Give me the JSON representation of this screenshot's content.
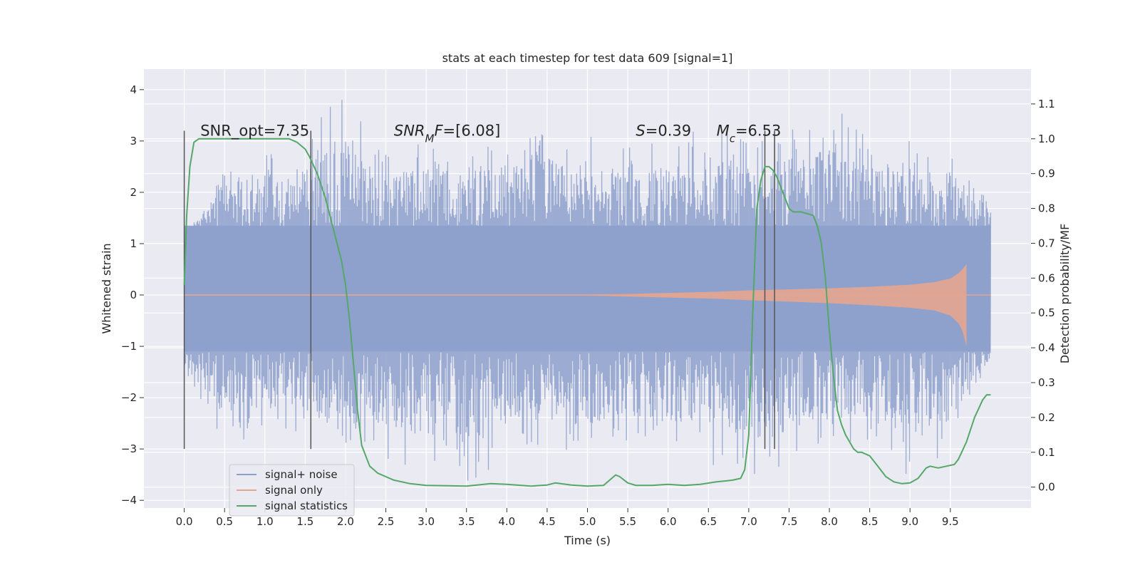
{
  "chart_data": {
    "type": "line",
    "title": "stats at each timestep for test data 609 [signal=1]",
    "xlabel": "Time (s)",
    "ylabel": "Whitened strain",
    "y2label": "Detection probability/MF",
    "xlim": [
      -0.5,
      10.5
    ],
    "ylim": [
      -4.15,
      4.4
    ],
    "y2lim": [
      -0.06,
      1.2
    ],
    "xticks": [
      0.0,
      0.5,
      1.0,
      1.5,
      2.0,
      2.5,
      3.0,
      3.5,
      4.0,
      4.5,
      5.0,
      5.5,
      6.0,
      6.5,
      7.0,
      7.5,
      8.0,
      8.5,
      9.0,
      9.5
    ],
    "xtick_labels": [
      "0.0",
      "0.5",
      "1.0",
      "1.5",
      "2.0",
      "2.5",
      "3.0",
      "3.5",
      "4.0",
      "4.5",
      "5.0",
      "5.5",
      "6.0",
      "6.5",
      "7.0",
      "7.5",
      "8.0",
      "8.5",
      "9.0",
      "9.5"
    ],
    "yticks": [
      -4,
      -3,
      -2,
      -1,
      0,
      1,
      2,
      3,
      4
    ],
    "ytick_labels": [
      "−4",
      "−3",
      "−2",
      "−1",
      "0",
      "1",
      "2",
      "3",
      "4"
    ],
    "y2ticks": [
      0.0,
      0.1,
      0.2,
      0.3,
      0.4,
      0.5,
      0.6,
      0.7,
      0.8,
      0.9,
      1.0,
      1.1
    ],
    "y2tick_labels": [
      "0.0",
      "0.1",
      "0.2",
      "0.3",
      "0.4",
      "0.5",
      "0.6",
      "0.7",
      "0.8",
      "0.9",
      "1.0",
      "1.1"
    ],
    "grid": true,
    "legend_position": "bottom-left",
    "series": [
      {
        "name": "signal+ noise",
        "color": "#8da0cb",
        "axis": "left",
        "x_range": [
          0.0,
          10.0
        ],
        "envelope_peaks": [
          [
            0.0,
            1.1
          ],
          [
            0.5,
            2.6
          ],
          [
            1.0,
            2.8
          ],
          [
            1.3,
            2.6
          ],
          [
            1.95,
            4.05
          ],
          [
            2.5,
            2.9
          ],
          [
            3.5,
            3.0
          ],
          [
            4.0,
            3.1
          ],
          [
            4.18,
            3.75
          ],
          [
            4.5,
            3.3
          ],
          [
            5.0,
            3.1
          ],
          [
            5.5,
            2.9
          ],
          [
            6.0,
            3.0
          ],
          [
            6.5,
            3.3
          ],
          [
            7.0,
            3.1
          ],
          [
            7.5,
            3.5
          ],
          [
            8.1,
            3.65
          ],
          [
            8.5,
            3.0
          ],
          [
            9.0,
            3.0
          ],
          [
            9.5,
            2.9
          ],
          [
            10.0,
            1.8
          ]
        ],
        "envelope_troughs": [
          [
            0.0,
            -1.5
          ],
          [
            0.5,
            -2.9
          ],
          [
            0.8,
            -3.2
          ],
          [
            1.0,
            -2.6
          ],
          [
            2.2,
            -3.0
          ],
          [
            3.35,
            -3.7
          ],
          [
            3.6,
            -3.8
          ],
          [
            4.0,
            -3.0
          ],
          [
            4.5,
            -3.0
          ],
          [
            5.0,
            -3.2
          ],
          [
            5.5,
            -2.9
          ],
          [
            6.0,
            -3.0
          ],
          [
            6.5,
            -3.3
          ],
          [
            7.2,
            -3.6
          ],
          [
            7.5,
            -3.3
          ],
          [
            8.0,
            -2.8
          ],
          [
            8.5,
            -3.0
          ],
          [
            9.0,
            -3.6
          ],
          [
            9.5,
            -3.1
          ],
          [
            10.0,
            -1.5
          ]
        ]
      },
      {
        "name": "signal only",
        "color": "#e5a58f",
        "axis": "left",
        "x": [
          0.0,
          5.0,
          5.5,
          6.0,
          6.5,
          7.0,
          7.5,
          8.0,
          8.5,
          9.0,
          9.3,
          9.5,
          9.6,
          9.65,
          9.7
        ],
        "upper": [
          0.01,
          0.01,
          0.02,
          0.04,
          0.06,
          0.09,
          0.11,
          0.13,
          0.16,
          0.2,
          0.25,
          0.32,
          0.42,
          0.5,
          0.6
        ],
        "lower": [
          -0.01,
          -0.01,
          -0.03,
          -0.05,
          -0.07,
          -0.1,
          -0.13,
          -0.16,
          -0.2,
          -0.25,
          -0.3,
          -0.4,
          -0.55,
          -0.7,
          -1.0
        ]
      },
      {
        "name": "signal statistics",
        "color": "#55a868",
        "axis": "right",
        "x": [
          0.0,
          0.03,
          0.07,
          0.12,
          0.18,
          0.3,
          0.5,
          0.8,
          1.1,
          1.3,
          1.4,
          1.5,
          1.55,
          1.65,
          1.75,
          1.85,
          1.95,
          2.0,
          2.05,
          2.1,
          2.15,
          2.2,
          2.3,
          2.4,
          2.5,
          2.6,
          2.8,
          3.0,
          3.5,
          3.8,
          4.0,
          4.3,
          4.5,
          4.6,
          4.8,
          5.0,
          5.2,
          5.3,
          5.35,
          5.4,
          5.5,
          5.6,
          5.8,
          6.0,
          6.2,
          6.4,
          6.6,
          6.8,
          6.9,
          6.95,
          7.0,
          7.05,
          7.1,
          7.15,
          7.2,
          7.25,
          7.3,
          7.35,
          7.4,
          7.45,
          7.5,
          7.55,
          7.6,
          7.65,
          7.8,
          7.85,
          7.9,
          7.95,
          8.0,
          8.05,
          8.1,
          8.15,
          8.2,
          8.3,
          8.35,
          8.4,
          8.5,
          8.6,
          8.7,
          8.8,
          8.9,
          9.0,
          9.1,
          9.2,
          9.25,
          9.35,
          9.45,
          9.55,
          9.6,
          9.7,
          9.8,
          9.9,
          9.95,
          10.0
        ],
        "values": [
          0.58,
          0.78,
          0.92,
          0.99,
          1.0,
          1.0,
          1.0,
          1.0,
          1.0,
          1.0,
          0.99,
          0.97,
          0.95,
          0.9,
          0.83,
          0.74,
          0.65,
          0.58,
          0.48,
          0.35,
          0.22,
          0.12,
          0.06,
          0.04,
          0.03,
          0.02,
          0.01,
          0.005,
          0.003,
          0.01,
          0.008,
          0.003,
          0.006,
          0.012,
          0.006,
          0.003,
          0.005,
          0.025,
          0.035,
          0.03,
          0.012,
          0.005,
          0.005,
          0.008,
          0.005,
          0.008,
          0.015,
          0.02,
          0.025,
          0.05,
          0.15,
          0.5,
          0.8,
          0.88,
          0.92,
          0.92,
          0.91,
          0.89,
          0.86,
          0.83,
          0.8,
          0.79,
          0.79,
          0.79,
          0.78,
          0.75,
          0.7,
          0.6,
          0.45,
          0.32,
          0.22,
          0.18,
          0.15,
          0.11,
          0.1,
          0.1,
          0.09,
          0.06,
          0.03,
          0.015,
          0.01,
          0.012,
          0.025,
          0.055,
          0.06,
          0.055,
          0.06,
          0.065,
          0.08,
          0.13,
          0.2,
          0.25,
          0.265,
          0.265
        ]
      }
    ],
    "vertical_markers": {
      "x": [
        0.0,
        1.57,
        7.2,
        7.32
      ],
      "y_range": [
        -3.0,
        3.2
      ],
      "color": "#555555"
    },
    "annotations": [
      {
        "name": "snr-opt-annotation",
        "text_parts": [
          {
            "t": "SNR_opt=7.35",
            "italic": false
          }
        ],
        "x": 0.2,
        "y": 3.1
      },
      {
        "name": "snr-mf-annotation",
        "text_parts": [
          {
            "t": "SNR",
            "italic": true
          },
          {
            "t": "M",
            "italic": true,
            "sub": true
          },
          {
            "t": "F",
            "italic": true
          },
          {
            "t": "=[6.08]",
            "italic": false
          }
        ],
        "x": 2.6,
        "y": 3.1
      },
      {
        "name": "s-annotation",
        "text_parts": [
          {
            "t": "S",
            "italic": true
          },
          {
            "t": "=0.39",
            "italic": false
          }
        ],
        "x": 5.6,
        "y": 3.1
      },
      {
        "name": "mc-annotation",
        "text_parts": [
          {
            "t": "M",
            "italic": true
          },
          {
            "t": "c",
            "italic": true,
            "sub": true
          },
          {
            "t": "=6.53",
            "italic": false
          }
        ],
        "x": 6.6,
        "y": 3.1
      }
    ]
  }
}
